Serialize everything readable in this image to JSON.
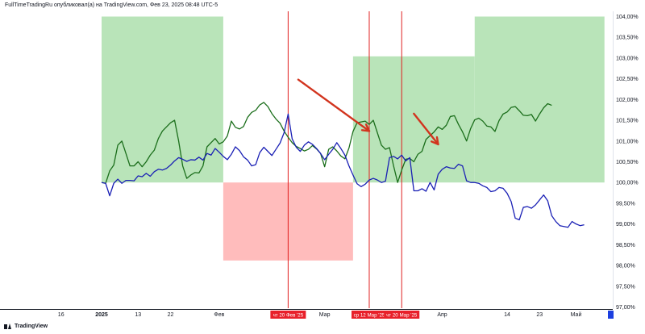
{
  "header": {
    "title": "FullTimeTradingRu опубликовал(а) на TradingView.com, Фев 23, 2025 08:48 UTC-5"
  },
  "footer": {
    "brand": "TradingView"
  },
  "colors": {
    "series_green": "#1b6e1b",
    "series_blue": "#1a20b5",
    "zone_green": "#b9e4b9",
    "zone_red": "#ffbcbc",
    "vline": "#e01f1f",
    "arrow": "#d2341e",
    "date_badge": "#e8202a",
    "axis_text": "#131722",
    "marker": "#1c3fe0"
  },
  "chart_data": {
    "type": "line",
    "ylim": [
      97.0,
      104.0
    ],
    "y_ticks": [
      "104,00%",
      "103,50%",
      "103,00%",
      "102,50%",
      "102,00%",
      "101,50%",
      "101,00%",
      "100,50%",
      "100,00%",
      "99,50%",
      "99,00%",
      "98,50%",
      "98,00%",
      "97,50%",
      "97,00%"
    ],
    "x_tick_labels": [
      {
        "label": "16",
        "bar": -10,
        "bold": false
      },
      {
        "label": "2025",
        "bar": 0,
        "bold": true
      },
      {
        "label": "13",
        "bar": 9,
        "bold": false
      },
      {
        "label": "22",
        "bar": 17,
        "bold": false
      },
      {
        "label": "Фев",
        "bar": 29,
        "bold": false
      },
      {
        "label": "Мар",
        "bar": 55,
        "bold": false
      },
      {
        "label": "Апр",
        "bar": 84,
        "bold": false
      },
      {
        "label": "14",
        "bar": 100,
        "bold": false
      },
      {
        "label": "23",
        "bar": 108,
        "bold": false
      },
      {
        "label": "Май",
        "bar": 117,
        "bold": false
      }
    ],
    "date_badges": [
      {
        "label": "чт 20 Фев '25",
        "bar": 46
      },
      {
        "label": "ср 12 Мар '25",
        "bar": 66
      },
      {
        "label": "чт 20 Мар '25",
        "bar": 74
      }
    ],
    "series": [
      {
        "values": [
          100.0,
          99.98,
          100.28,
          100.42,
          100.9,
          101.0,
          100.7,
          100.4,
          100.4,
          100.5,
          100.38,
          100.5,
          100.66,
          100.78,
          101.06,
          101.24,
          101.34,
          101.44,
          101.5,
          101.0,
          100.4,
          100.1,
          100.18,
          100.24,
          100.23,
          100.4,
          100.86,
          100.96,
          101.06,
          100.93,
          100.98,
          101.12,
          101.48,
          101.33,
          101.29,
          101.35,
          101.57,
          101.69,
          101.74,
          101.87,
          101.93,
          101.83,
          101.66,
          101.53,
          101.43,
          101.24,
          101.09,
          100.96,
          100.87,
          100.82,
          100.76,
          100.8,
          100.89,
          100.81,
          100.7,
          100.38,
          100.8,
          100.86,
          100.76,
          100.64,
          100.57,
          100.83,
          101.23,
          101.44,
          101.46,
          101.48,
          101.4,
          101.5,
          101.2,
          100.9,
          100.8,
          100.84,
          100.4,
          100.0,
          100.3,
          100.56,
          100.58,
          100.5,
          100.68,
          100.75,
          101.04,
          101.13,
          101.22,
          101.34,
          101.28,
          101.38,
          101.59,
          101.61,
          101.4,
          101.22,
          101.0,
          101.3,
          101.51,
          101.55,
          101.48,
          101.36,
          101.34,
          101.23,
          101.49,
          101.65,
          101.7,
          101.81,
          101.83,
          101.73,
          101.62,
          101.61,
          101.64,
          101.48,
          101.65,
          101.8,
          101.9,
          101.86
        ],
        "start_bar": 0
      },
      {
        "values": [
          100.0,
          99.98,
          99.68,
          99.98,
          100.08,
          99.98,
          100.05,
          100.05,
          100.04,
          100.16,
          100.14,
          100.22,
          100.15,
          100.26,
          100.32,
          100.3,
          100.34,
          100.42,
          100.52,
          100.6,
          100.56,
          100.51,
          100.55,
          100.54,
          100.61,
          100.54,
          100.7,
          100.66,
          100.82,
          100.73,
          100.63,
          100.55,
          100.68,
          100.86,
          100.77,
          100.62,
          100.54,
          100.4,
          100.43,
          100.72,
          100.85,
          100.75,
          100.65,
          100.8,
          100.95,
          101.2,
          101.65,
          101.05,
          100.85,
          100.75,
          100.9,
          100.98,
          100.92,
          100.82,
          100.7,
          100.55,
          100.68,
          100.8,
          100.96,
          100.82,
          100.66,
          100.4,
          100.18,
          99.97,
          99.9,
          99.96,
          100.06,
          100.1,
          100.06,
          100.0,
          100.03,
          100.6,
          100.63,
          100.57,
          100.66,
          100.52,
          100.6,
          99.8,
          99.8,
          99.85,
          99.79,
          100.0,
          99.82,
          100.2,
          100.32,
          100.38,
          100.35,
          100.34,
          100.44,
          100.4,
          100.04,
          100.0,
          100.0,
          99.98,
          99.92,
          99.88,
          99.78,
          99.8,
          99.88,
          99.86,
          99.74,
          99.54,
          99.14,
          99.1,
          99.4,
          99.42,
          99.38,
          99.46,
          99.58,
          99.7,
          99.56,
          99.2,
          99.06,
          98.96,
          98.94,
          98.92,
          99.06,
          99.0,
          98.96,
          98.98
        ],
        "start_bar": 0
      }
    ],
    "zones": [
      {
        "type": "green",
        "from_bar": 0,
        "to_bar": 30,
        "y_from": 100.0,
        "y_to": 104.0
      },
      {
        "type": "red",
        "from_bar": 30,
        "to_bar": 62,
        "y_from": 98.12,
        "y_to": 100.0
      },
      {
        "type": "green",
        "from_bar": 62,
        "to_bar": 92,
        "y_from": 100.0,
        "y_to": 103.04
      },
      {
        "type": "green",
        "from_bar": 92,
        "to_bar": 124,
        "y_from": 100.0,
        "y_to": 104.0
      }
    ],
    "vertical_lines_bars": [
      46,
      66,
      74
    ],
    "arrows": [
      {
        "from": [
          48.5,
          102.48
        ],
        "to": [
          66.0,
          101.24
        ]
      },
      {
        "from": [
          77.0,
          101.66
        ],
        "to": [
          83.0,
          100.92
        ]
      }
    ],
    "grid": false
  }
}
